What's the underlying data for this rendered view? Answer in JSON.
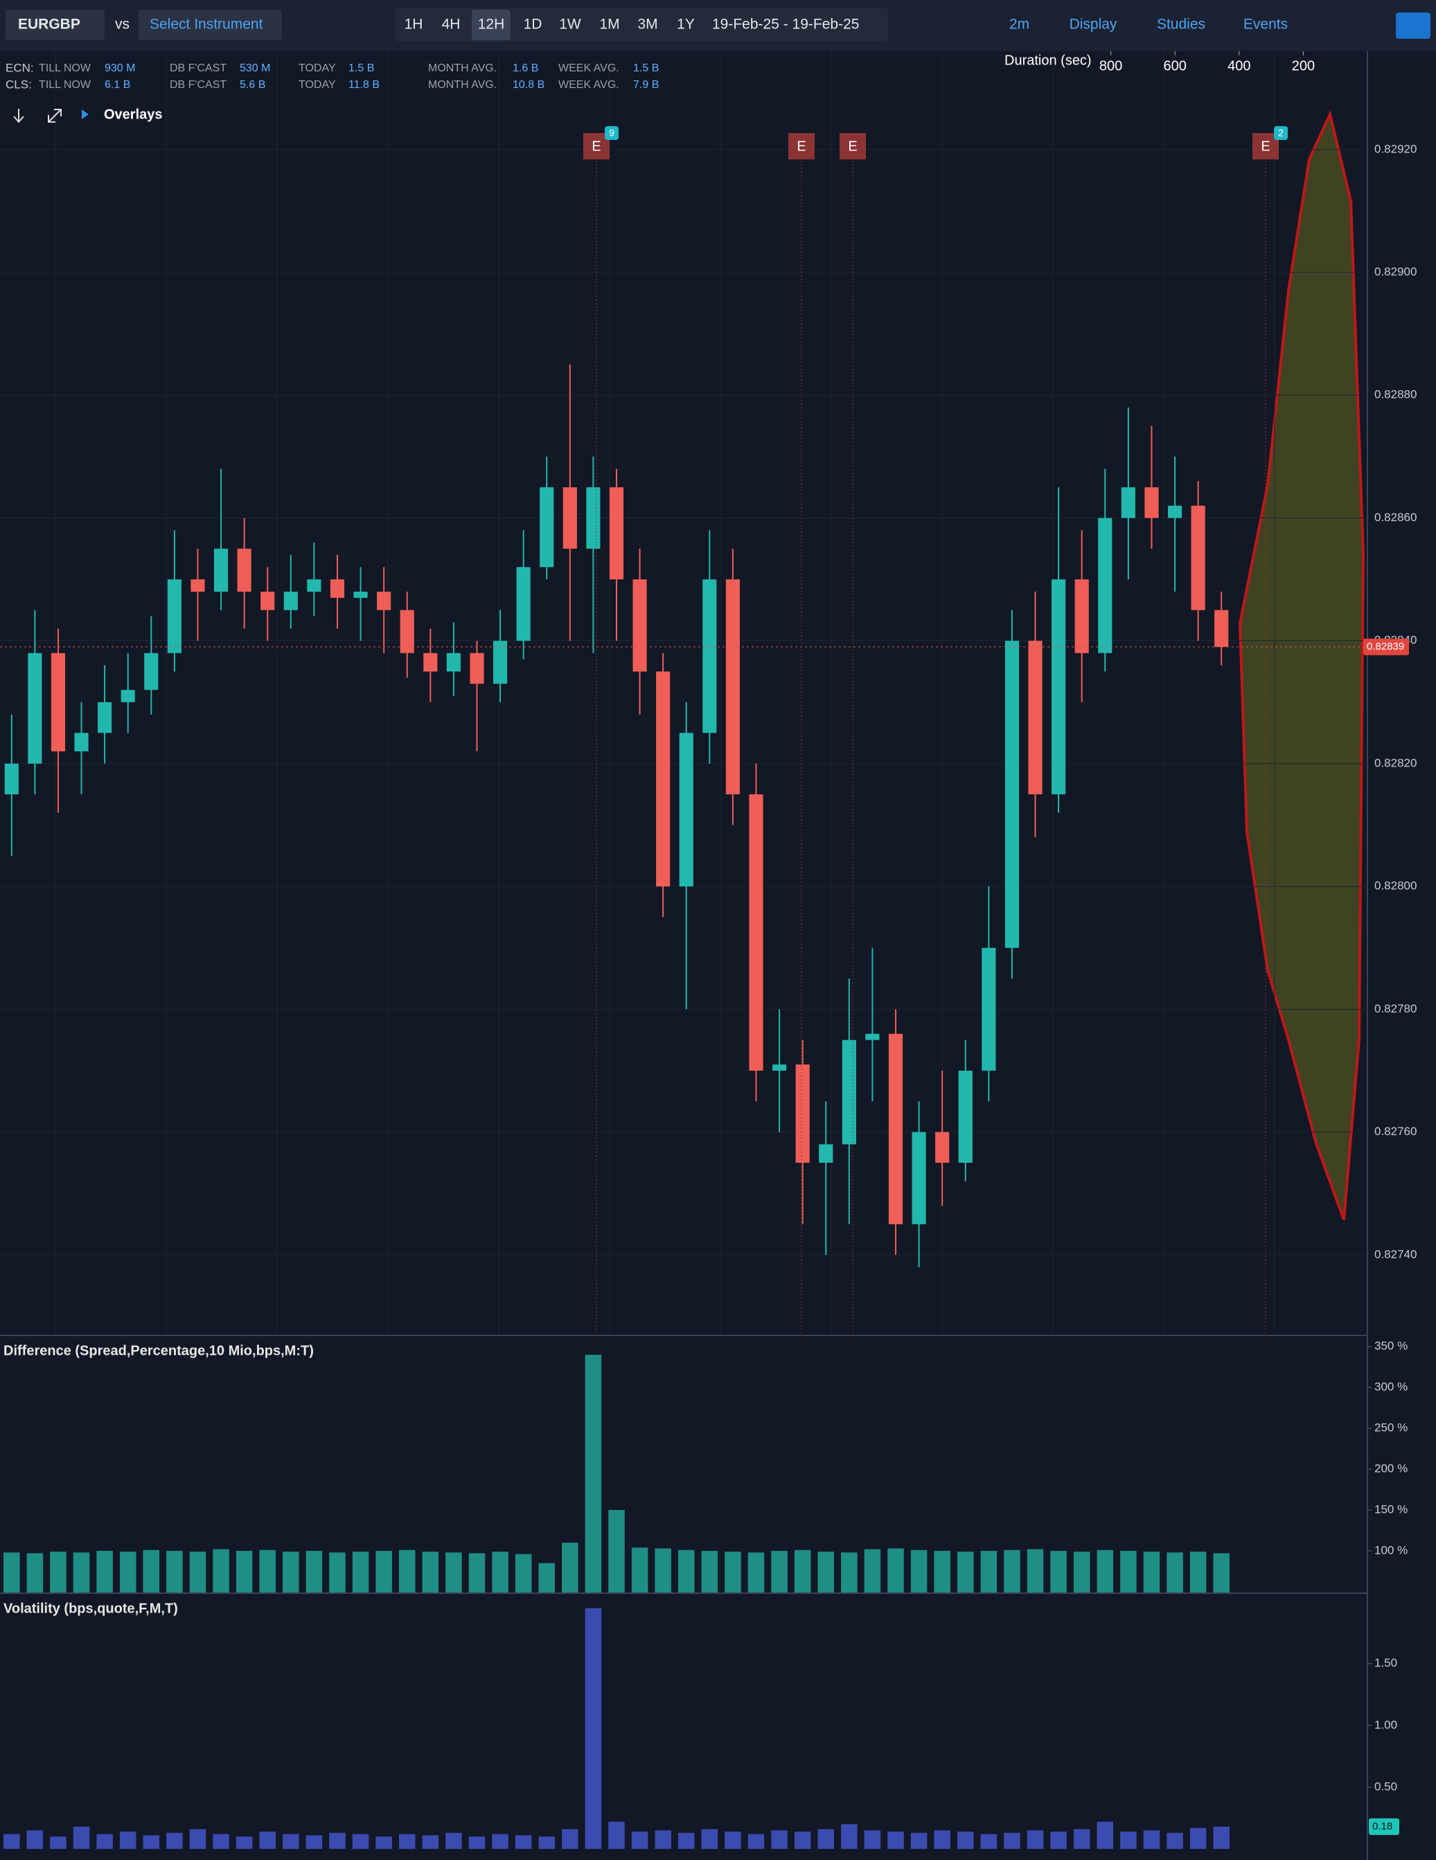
{
  "toolbar": {
    "instrument": "EURGBP",
    "vs": "vs",
    "compare": "Select Instrument",
    "timeframes": [
      "1H",
      "4H",
      "12H",
      "1D",
      "1W",
      "1M",
      "3M",
      "1Y"
    ],
    "active_timeframe": "12H",
    "date_range": "19-Feb-25 - 19-Feb-25",
    "interval": "2m",
    "menus": [
      "Display",
      "Studies",
      "Events"
    ]
  },
  "stats": {
    "rows": [
      {
        "label": "ECN:",
        "items": [
          [
            "TILL NOW",
            "930 M"
          ],
          [
            "DB F'CAST",
            "530 M"
          ],
          [
            "TODAY",
            "1.5 B"
          ],
          [
            "MONTH AVG.",
            "1.6 B"
          ],
          [
            "WEEK AVG.",
            "1.5 B"
          ]
        ]
      },
      {
        "label": "CLS:",
        "items": [
          [
            "TILL NOW",
            "6.1 B"
          ],
          [
            "DB F'CAST",
            "5.6 B"
          ],
          [
            "TODAY",
            "11.8 B"
          ],
          [
            "MONTH AVG.",
            "10.8 B"
          ],
          [
            "WEEK AVG.",
            "7.9 B"
          ]
        ]
      }
    ]
  },
  "overlays": "Overlays",
  "main_chart": {
    "type": "candlestick",
    "up_color": "#22b8ad",
    "down_color": "#ef5f57",
    "candles": [
      [
        0.82815,
        0.82828,
        0.82805,
        0.8282
      ],
      [
        0.8282,
        0.82845,
        0.82815,
        0.82838
      ],
      [
        0.82838,
        0.82842,
        0.82812,
        0.82822
      ],
      [
        0.82822,
        0.8283,
        0.82815,
        0.82825
      ],
      [
        0.82825,
        0.82836,
        0.8282,
        0.8283
      ],
      [
        0.8283,
        0.82838,
        0.82825,
        0.82832
      ],
      [
        0.82832,
        0.82844,
        0.82828,
        0.82838
      ],
      [
        0.82838,
        0.82858,
        0.82835,
        0.8285
      ],
      [
        0.8285,
        0.82855,
        0.8284,
        0.82848
      ],
      [
        0.82848,
        0.82868,
        0.82845,
        0.82855
      ],
      [
        0.82855,
        0.8286,
        0.82842,
        0.82848
      ],
      [
        0.82848,
        0.82852,
        0.8284,
        0.82845
      ],
      [
        0.82845,
        0.82854,
        0.82842,
        0.82848
      ],
      [
        0.82848,
        0.82856,
        0.82844,
        0.8285
      ],
      [
        0.8285,
        0.82854,
        0.82842,
        0.82847
      ],
      [
        0.82847,
        0.82852,
        0.8284,
        0.82848
      ],
      [
        0.82848,
        0.82852,
        0.82838,
        0.82845
      ],
      [
        0.82845,
        0.82848,
        0.82834,
        0.82838
      ],
      [
        0.82838,
        0.82842,
        0.8283,
        0.82835
      ],
      [
        0.82835,
        0.82843,
        0.82831,
        0.82838
      ],
      [
        0.82838,
        0.8284,
        0.82822,
        0.82833
      ],
      [
        0.82833,
        0.82845,
        0.8283,
        0.8284
      ],
      [
        0.8284,
        0.82858,
        0.82837,
        0.82852
      ],
      [
        0.82852,
        0.8287,
        0.8285,
        0.82865
      ],
      [
        0.82865,
        0.82885,
        0.8284,
        0.82855
      ],
      [
        0.82855,
        0.8287,
        0.82838,
        0.82865
      ],
      [
        0.82865,
        0.82868,
        0.8284,
        0.8285
      ],
      [
        0.8285,
        0.82855,
        0.82828,
        0.82835
      ],
      [
        0.82835,
        0.82838,
        0.82795,
        0.828
      ],
      [
        0.828,
        0.8283,
        0.8278,
        0.82825
      ],
      [
        0.82825,
        0.82858,
        0.8282,
        0.8285
      ],
      [
        0.8285,
        0.82855,
        0.8281,
        0.82815
      ],
      [
        0.82815,
        0.8282,
        0.82765,
        0.8277
      ],
      [
        0.8277,
        0.8278,
        0.8276,
        0.82771
      ],
      [
        0.82771,
        0.82775,
        0.82745,
        0.82755
      ],
      [
        0.82755,
        0.82765,
        0.8274,
        0.82758
      ],
      [
        0.82758,
        0.82785,
        0.82745,
        0.82775
      ],
      [
        0.82775,
        0.8279,
        0.82765,
        0.82776
      ],
      [
        0.82776,
        0.8278,
        0.8274,
        0.82745
      ],
      [
        0.82745,
        0.82765,
        0.82738,
        0.8276
      ],
      [
        0.8276,
        0.8277,
        0.82748,
        0.82755
      ],
      [
        0.82755,
        0.82775,
        0.82752,
        0.8277
      ],
      [
        0.8277,
        0.828,
        0.82765,
        0.8279
      ],
      [
        0.8279,
        0.82845,
        0.82785,
        0.8284
      ],
      [
        0.8284,
        0.82848,
        0.82808,
        0.82815
      ],
      [
        0.82815,
        0.82865,
        0.82812,
        0.8285
      ],
      [
        0.8285,
        0.82858,
        0.8283,
        0.82838
      ],
      [
        0.82838,
        0.82868,
        0.82835,
        0.8286
      ],
      [
        0.8286,
        0.82878,
        0.8285,
        0.82865
      ],
      [
        0.82865,
        0.82875,
        0.82855,
        0.8286
      ],
      [
        0.8286,
        0.8287,
        0.82848,
        0.82862
      ],
      [
        0.82862,
        0.82866,
        0.8284,
        0.82845
      ],
      [
        0.82845,
        0.82848,
        0.82836,
        0.82839
      ]
    ],
    "ylim": [
      0.82727,
      0.82936
    ],
    "yticks": [
      {
        "value": 0.8292,
        "label": "0.82920"
      },
      {
        "value": 0.829,
        "label": "0.82900"
      },
      {
        "value": 0.8288,
        "label": "0.82880"
      },
      {
        "value": 0.8286,
        "label": "0.82860"
      },
      {
        "value": 0.8284,
        "label": "0.82840"
      },
      {
        "value": 0.8282,
        "label": "0.82820"
      },
      {
        "value": 0.828,
        "label": "0.82800"
      },
      {
        "value": 0.8278,
        "label": "0.82780"
      },
      {
        "value": 0.8276,
        "label": "0.82760"
      },
      {
        "value": 0.8274,
        "label": "0.82740"
      }
    ],
    "current_price": {
      "value": 0.82839,
      "label": "0.82839"
    },
    "events": [
      {
        "label": "E",
        "badge": "9"
      },
      {
        "label": "E"
      },
      {
        "label": "E"
      },
      {
        "label": "E",
        "badge": "2"
      }
    ]
  },
  "duration": {
    "title": "Duration (sec)",
    "xlim": [
      1000,
      0
    ],
    "xticks": [
      800,
      600,
      400,
      200
    ]
  },
  "difference": {
    "type": "bar",
    "title": "Difference (Spread,Percentage,10 Mio,bps,M:T)",
    "color": "#1f8f86",
    "values": [
      98,
      97,
      99,
      98,
      100,
      99,
      101,
      100,
      99,
      102,
      100,
      101,
      99,
      100,
      98,
      99,
      100,
      101,
      99,
      98,
      97,
      99,
      96,
      85,
      110,
      340,
      150,
      104,
      103,
      101,
      100,
      99,
      98,
      100,
      101,
      99,
      98,
      102,
      103,
      101,
      100,
      99,
      100,
      101,
      102,
      100,
      99,
      101,
      100,
      99,
      98,
      99,
      97
    ],
    "ylim": [
      49,
      362
    ],
    "yticks": [
      {
        "value": 350,
        "label": "350 %"
      },
      {
        "value": 300,
        "label": "300 %"
      },
      {
        "value": 250,
        "label": "250 %"
      },
      {
        "value": 200,
        "label": "200 %"
      },
      {
        "value": 150,
        "label": "150 %"
      },
      {
        "value": 100,
        "label": "100 %"
      }
    ]
  },
  "volatility": {
    "type": "bar",
    "title": "Volatility (bps,quote,F,M,T)",
    "color": "#3b4bb0",
    "values": [
      0.12,
      0.15,
      0.1,
      0.18,
      0.12,
      0.14,
      0.11,
      0.13,
      0.16,
      0.12,
      0.1,
      0.14,
      0.12,
      0.11,
      0.13,
      0.12,
      0.1,
      0.12,
      0.11,
      0.13,
      0.1,
      0.12,
      0.11,
      0.1,
      0.16,
      1.95,
      0.22,
      0.14,
      0.15,
      0.13,
      0.16,
      0.14,
      0.12,
      0.15,
      0.14,
      0.16,
      0.2,
      0.15,
      0.14,
      0.13,
      0.15,
      0.14,
      0.12,
      0.13,
      0.15,
      0.14,
      0.16,
      0.22,
      0.14,
      0.15,
      0.13,
      0.17,
      0.18
    ],
    "ylim": [
      -0.09,
      2.06
    ],
    "yticks": [
      {
        "value": 1.5,
        "label": "1.50"
      },
      {
        "value": 1,
        "label": "1.00"
      },
      {
        "value": 0.5,
        "label": "0.50"
      }
    ],
    "current": {
      "value": 0.18,
      "label": "0.18"
    }
  }
}
